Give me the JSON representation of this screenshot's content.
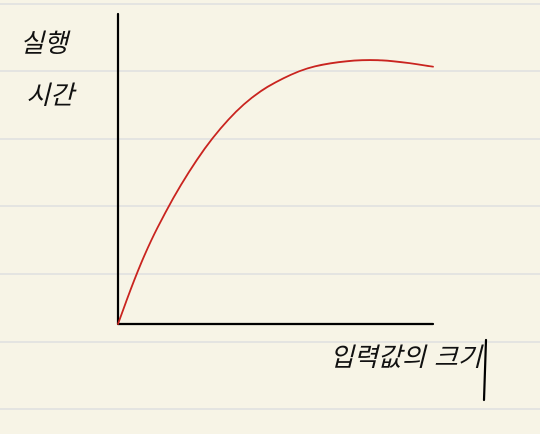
{
  "page": {
    "background": "#f7f4e6",
    "rule_color": "#d9dade",
    "ruled_paper": true
  },
  "chart_data": {
    "type": "line",
    "title": "",
    "ylabel_lines": [
      "실행",
      "시간"
    ],
    "xlabel": "입력값의 크기",
    "axis_color": "#000000",
    "grid": false,
    "xlim": [
      0,
      1
    ],
    "ylim": [
      0,
      1
    ],
    "series": [
      {
        "color": "#c9241f",
        "x": [
          0,
          0.05,
          0.1,
          0.15,
          0.2,
          0.25,
          0.3,
          0.35,
          0.4,
          0.45,
          0.5,
          0.55,
          0.6,
          0.65,
          0.7,
          0.75,
          0.8,
          0.85,
          0.9,
          0.95,
          1.0
        ],
        "y": [
          0,
          0.14,
          0.26,
          0.36,
          0.45,
          0.53,
          0.6,
          0.66,
          0.71,
          0.75,
          0.78,
          0.805,
          0.825,
          0.837,
          0.845,
          0.85,
          0.852,
          0.85,
          0.845,
          0.838,
          0.83
        ]
      }
    ]
  }
}
